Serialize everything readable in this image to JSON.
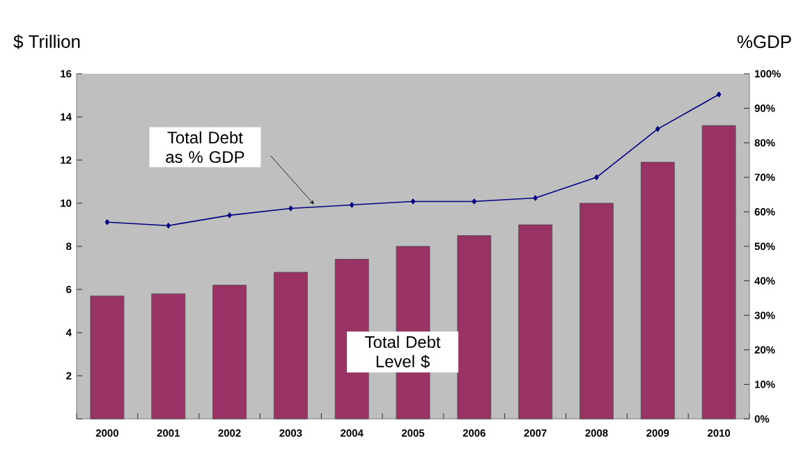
{
  "chart_data": {
    "type": "bar",
    "ylabel": "$ Trillion",
    "y2label": "%GDP",
    "categories": [
      "2000",
      "2001",
      "2002",
      "2003",
      "2004",
      "2005",
      "2006",
      "2007",
      "2008",
      "2009",
      "2010"
    ],
    "series": [
      {
        "color": "#993366",
        "values": [
          5.7,
          5.8,
          6.2,
          6.8,
          7.4,
          8.0,
          8.5,
          9.0,
          10.0,
          11.9,
          13.6
        ]
      },
      {
        "type": "line",
        "axis": "y2",
        "color": "#000080",
        "marker": "diamond",
        "values": [
          57,
          56,
          59,
          61,
          62,
          63,
          63,
          64,
          70,
          84,
          94
        ]
      }
    ],
    "ylim": [
      0,
      16
    ],
    "yticks": [
      {
        "value": 0,
        "label": null
      },
      2,
      4,
      6,
      8,
      10,
      12,
      14,
      16
    ],
    "y2lim": [
      0,
      100
    ],
    "y2ticks": [
      {
        "value": 0,
        "label": "0%"
      },
      {
        "value": 10,
        "label": "10%"
      },
      {
        "value": 20,
        "label": "20%"
      },
      {
        "value": 30,
        "label": "30%"
      },
      {
        "value": 40,
        "label": "40%"
      },
      {
        "value": 50,
        "label": "50%"
      },
      {
        "value": 60,
        "label": "60%"
      },
      {
        "value": 70,
        "label": "70%"
      },
      {
        "value": 80,
        "label": "80%"
      },
      {
        "value": 90,
        "label": "90%"
      },
      {
        "value": 100,
        "label": "100%"
      }
    ],
    "annotations": [
      "Total Debt as % GDP",
      "Total Debt Level $"
    ]
  }
}
